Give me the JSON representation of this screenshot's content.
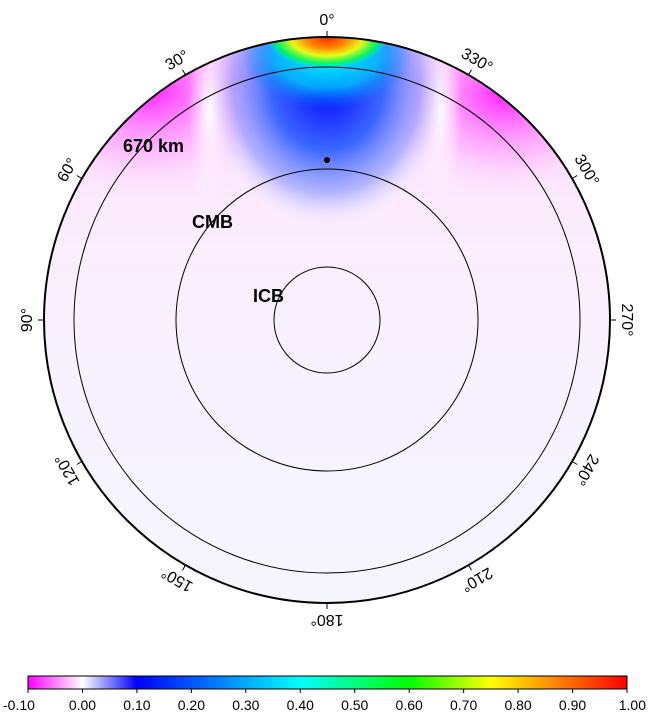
{
  "boundaries": {
    "labels": {
      "670km": "670 km",
      "cmb": "CMB",
      "icb": "ICB"
    },
    "radius_fractions": {
      "670km": 0.8948,
      "cmb": 0.5461,
      "icb": 0.1918
    }
  },
  "angle_labels": [
    {
      "deg": 0,
      "text": "0°"
    },
    {
      "deg": 30,
      "text": "30°"
    },
    {
      "deg": 60,
      "text": "60°"
    },
    {
      "deg": 90,
      "text": "90°"
    },
    {
      "deg": 120,
      "text": "120°"
    },
    {
      "deg": 150,
      "text": "150°"
    },
    {
      "deg": 180,
      "text": "180°"
    },
    {
      "deg": 210,
      "text": "210°"
    },
    {
      "deg": 240,
      "text": "240°"
    },
    {
      "deg": 270,
      "text": "270°"
    },
    {
      "deg": 300,
      "text": "300°"
    },
    {
      "deg": 330,
      "text": "330°"
    }
  ],
  "colorbar": {
    "min": -0.1,
    "max": 1.0,
    "ticks": [
      "-0.10",
      "0.00",
      "0.10",
      "0.20",
      "0.30",
      "0.40",
      "0.50",
      "0.60",
      "0.70",
      "0.80",
      "0.90",
      "1.00"
    ],
    "colors": {
      "magenta": "#ff00ff",
      "white": "#ffffff",
      "blue": "#0000ff",
      "cyan": "#00ffff",
      "green": "#00ff00",
      "yellow": "#ffff00",
      "red": "#ff0000"
    }
  },
  "marker": {
    "type": "dot",
    "color": "#000000"
  }
}
